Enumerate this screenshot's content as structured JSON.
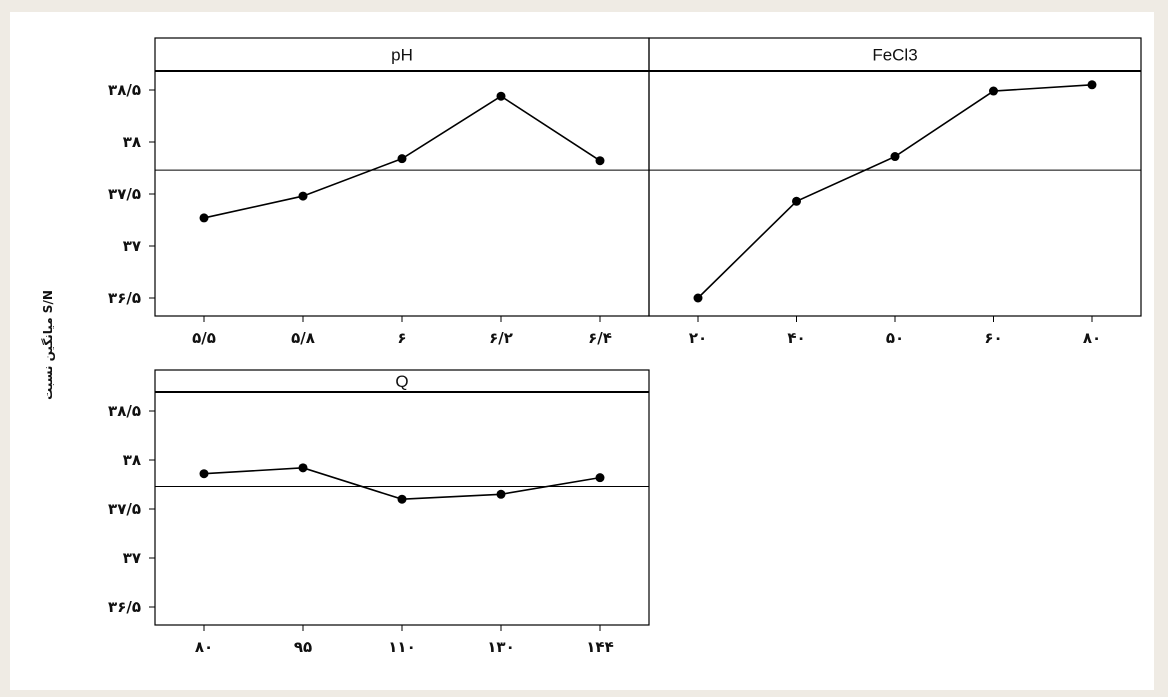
{
  "chart_data": {
    "type": "line",
    "ylabel": "میانگین نسبت S/N",
    "ylim": [
      36.5,
      38.5
    ],
    "grid": false,
    "reference_line": 37.73,
    "y_ticks": [
      {
        "value": 38.5,
        "label": "۳۸/۵"
      },
      {
        "value": 38.0,
        "label": "۳۸"
      },
      {
        "value": 37.5,
        "label": "۳۷/۵"
      },
      {
        "value": 37.0,
        "label": "۳۷"
      },
      {
        "value": 36.5,
        "label": "۳۶/۵"
      }
    ],
    "panels": [
      {
        "title": "pH",
        "categories": [
          "۵/۵",
          "۵/۸",
          "۶",
          "۶/۲",
          "۶/۴"
        ],
        "values": [
          37.27,
          37.48,
          37.84,
          38.44,
          37.82
        ]
      },
      {
        "title": "FeCl3",
        "categories": [
          "۲۰",
          "۴۰",
          "۵۰",
          "۶۰",
          "۸۰"
        ],
        "values": [
          36.5,
          37.43,
          37.86,
          38.49,
          38.55
        ]
      },
      {
        "title": "Q",
        "categories": [
          "۸۰",
          "۹۵",
          "۱۱۰",
          "۱۳۰",
          "۱۴۴"
        ],
        "values": [
          37.86,
          37.92,
          37.6,
          37.65,
          37.82
        ]
      }
    ]
  }
}
